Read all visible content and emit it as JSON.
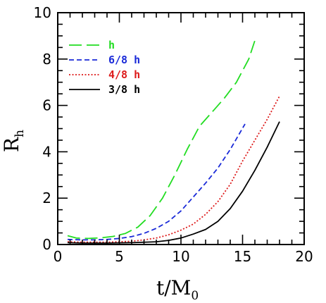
{
  "chart_data": {
    "type": "line",
    "title": "",
    "xlabel": "t/M",
    "xlabel_sub": "0",
    "ylabel": "R",
    "ylabel_sub": "h",
    "xlim": [
      0,
      20
    ],
    "ylim": [
      0,
      10
    ],
    "x_ticks": [
      0,
      5,
      10,
      15,
      20
    ],
    "y_ticks": [
      0,
      2,
      4,
      6,
      8,
      10
    ],
    "grid": false,
    "legend_position": "top-left",
    "series": [
      {
        "name": "h",
        "color": "#22dd22",
        "dash": "long-dash",
        "x": [
          0.8,
          1.5,
          2.5,
          3.5,
          4.5,
          5.5,
          6.5,
          7.5,
          8.5,
          9.5,
          10.5,
          11.5,
          12.5,
          13.5,
          14.5,
          15.5,
          16.0
        ],
        "y": [
          0.38,
          0.28,
          0.26,
          0.29,
          0.35,
          0.48,
          0.75,
          1.25,
          2.0,
          3.0,
          4.1,
          5.1,
          5.7,
          6.3,
          7.0,
          8.0,
          8.8
        ]
      },
      {
        "name": "6/8 h",
        "color": "#1a2ad8",
        "dash": "short-dash",
        "x": [
          0.8,
          2,
          3,
          4,
          5,
          6,
          7,
          8,
          9,
          10,
          11,
          12,
          13,
          14,
          15.2
        ],
        "y": [
          0.22,
          0.2,
          0.2,
          0.22,
          0.26,
          0.34,
          0.48,
          0.7,
          1.0,
          1.45,
          2.05,
          2.65,
          3.3,
          4.1,
          5.2
        ]
      },
      {
        "name": "4/8 h",
        "color": "#dd1a1a",
        "dash": "dotted",
        "x": [
          0.8,
          2,
          4,
          6,
          7,
          8,
          9,
          10,
          11,
          12,
          13,
          14,
          15,
          16,
          17,
          18
        ],
        "y": [
          0.12,
          0.1,
          0.1,
          0.14,
          0.2,
          0.28,
          0.42,
          0.62,
          0.88,
          1.3,
          1.85,
          2.6,
          3.6,
          4.5,
          5.4,
          6.4
        ]
      },
      {
        "name": "3/8 h",
        "color": "#000000",
        "dash": "solid",
        "x": [
          0.8,
          2,
          4,
          6,
          8,
          9,
          10,
          11,
          12,
          13,
          14,
          15,
          16,
          17,
          18
        ],
        "y": [
          0.08,
          0.06,
          0.06,
          0.08,
          0.12,
          0.18,
          0.28,
          0.45,
          0.65,
          1.0,
          1.55,
          2.3,
          3.2,
          4.2,
          5.3
        ]
      }
    ]
  }
}
